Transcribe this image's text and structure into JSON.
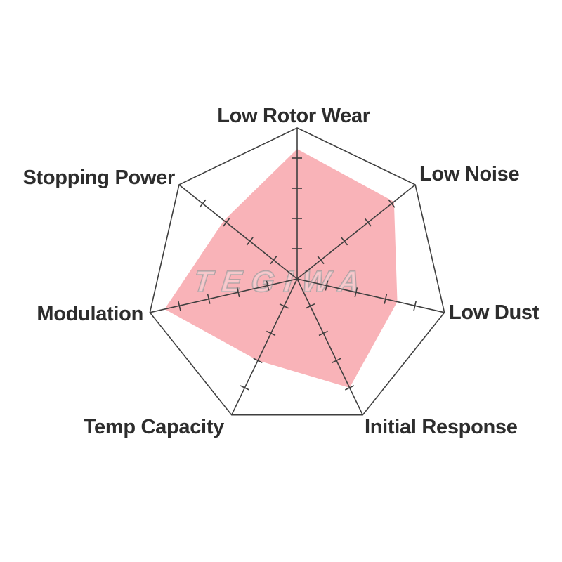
{
  "chart_data": {
    "type": "radar",
    "title": "",
    "categories": [
      "Low Rotor Wear",
      "Low Noise",
      "Low Dust",
      "Initial Response",
      "Temp Capacity",
      "Modulation",
      "Stopping Power"
    ],
    "values": [
      4.3,
      4.1,
      3.4,
      4.0,
      3.0,
      4.5,
      3.1
    ],
    "scale": {
      "min": 0,
      "max": 5,
      "tick_levels": [
        1,
        2,
        3,
        4
      ],
      "outer_ring_level": 5
    },
    "layout_hints": {
      "axes_start": "top",
      "direction": "clockwise",
      "grid": "spokes-with-perpendicular-ticks",
      "legend": "none"
    },
    "colors": {
      "area_fill": "#f9b3b8",
      "grid_line": "#3f3f3f",
      "label_text": "#2d2d2d",
      "watermark_stroke": "#a39a9c",
      "watermark_fill": "rgba(255,255,255,0.32)"
    },
    "watermark": "TEGIWA"
  }
}
